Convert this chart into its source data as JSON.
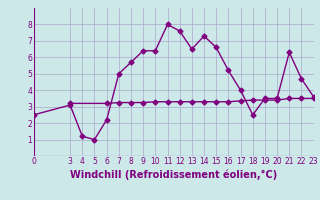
{
  "xlabel": "Windchill (Refroidissement éolien,°C)",
  "bg_color": "#cce8e8",
  "line1_x": [
    0,
    3,
    4,
    5,
    6,
    7,
    8,
    9,
    10,
    11,
    12,
    13,
    14,
    15,
    16,
    17,
    18,
    19,
    20,
    21,
    22,
    23
  ],
  "line1_y": [
    2.5,
    3.1,
    1.2,
    1.0,
    2.2,
    5.0,
    5.7,
    6.4,
    6.4,
    8.0,
    7.6,
    6.5,
    7.3,
    6.6,
    5.2,
    4.0,
    2.5,
    3.5,
    3.5,
    6.3,
    4.7,
    3.6
  ],
  "line2_x": [
    3,
    6,
    7,
    8,
    9,
    10,
    11,
    12,
    13,
    14,
    15,
    16,
    17,
    18,
    19,
    20,
    21,
    22,
    23
  ],
  "line2_y": [
    3.2,
    3.2,
    3.25,
    3.25,
    3.25,
    3.3,
    3.3,
    3.3,
    3.3,
    3.3,
    3.3,
    3.3,
    3.35,
    3.4,
    3.4,
    3.4,
    3.5,
    3.5,
    3.5
  ],
  "line_color": "#800080",
  "marker": "D",
  "marker_size": 2.5,
  "line_width": 1.0,
  "xlim": [
    0,
    23
  ],
  "ylim": [
    0,
    9
  ],
  "yticks": [
    1,
    2,
    3,
    4,
    5,
    6,
    7,
    8
  ],
  "xticks": [
    0,
    3,
    4,
    5,
    6,
    7,
    8,
    9,
    10,
    11,
    12,
    13,
    14,
    15,
    16,
    17,
    18,
    19,
    20,
    21,
    22,
    23
  ],
  "grid_color": "#aaaacc",
  "tick_fontsize": 5.5,
  "xlabel_fontsize": 7.0
}
